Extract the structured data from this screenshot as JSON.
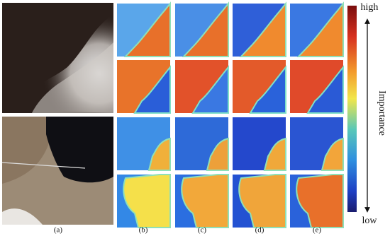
{
  "figure": {
    "panel_labels": [
      "(a)",
      "(b)",
      "(c)",
      "(d)",
      "(e)"
    ],
    "colorbar": {
      "top": "high",
      "bottom": "low",
      "label": "Importance"
    }
  }
}
